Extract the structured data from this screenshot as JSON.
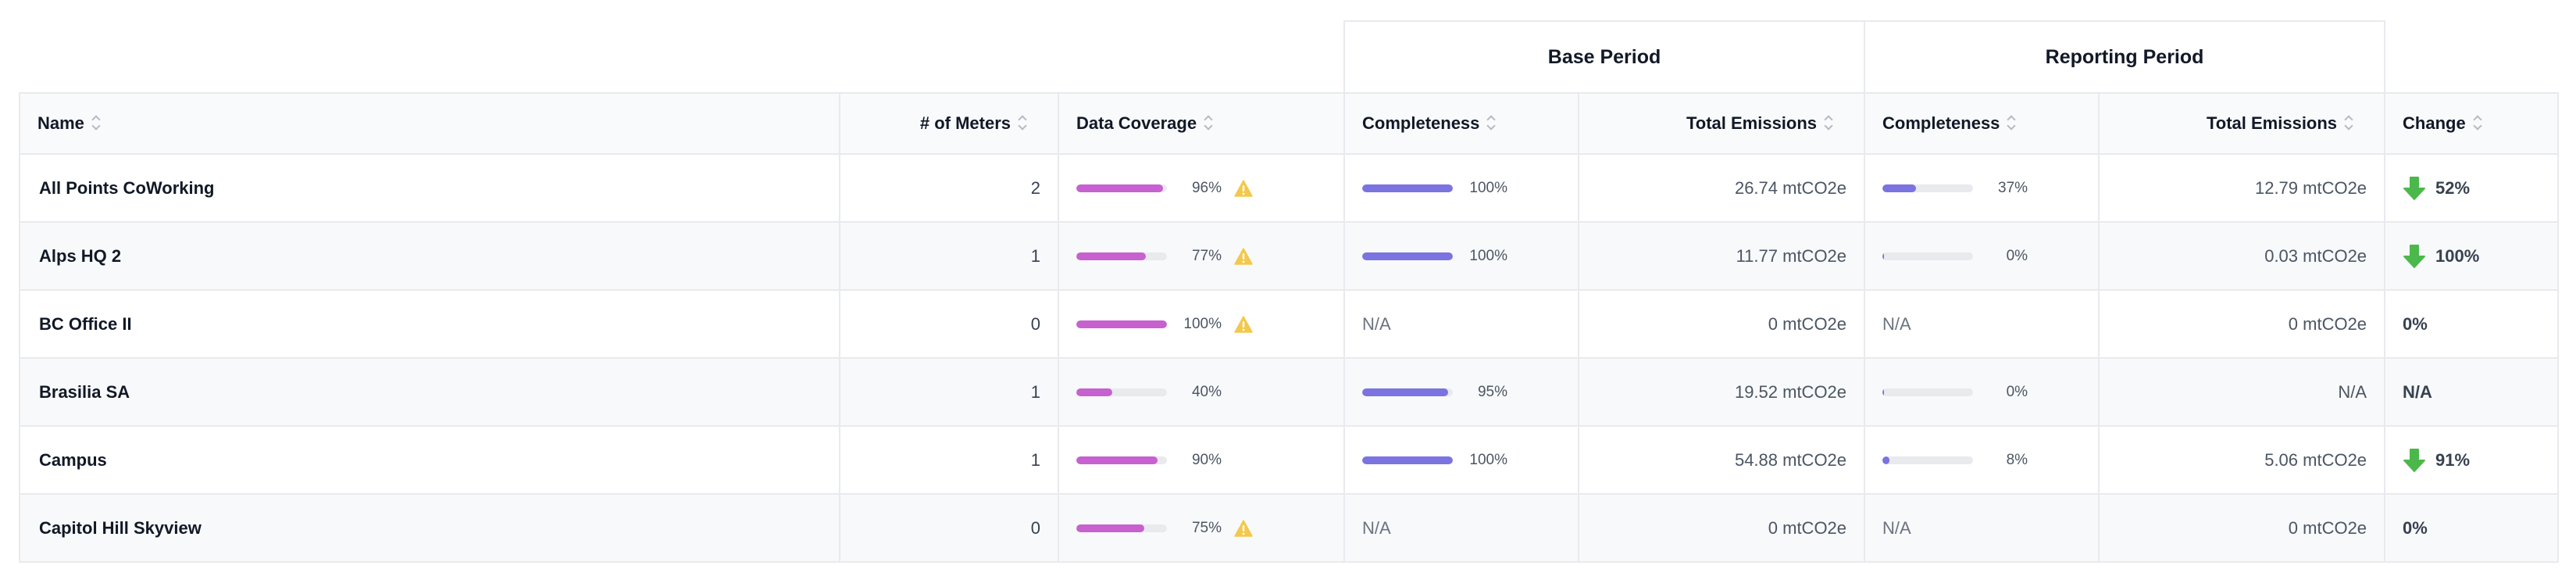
{
  "groups": {
    "base": "Base Period",
    "reporting": "Reporting Period"
  },
  "columns": {
    "name": "Name",
    "meters": "# of Meters",
    "coverage": "Data Coverage",
    "base_completeness": "Completeness",
    "base_total": "Total Emissions",
    "rep_completeness": "Completeness",
    "rep_total": "Total Emissions",
    "change": "Change"
  },
  "colors": {
    "coverage_bar": "#c661cf",
    "completeness_bar": "#7b73e0",
    "warning": "#f2c94c",
    "down_arrow": "#4cb84c"
  },
  "rows": [
    {
      "name": "All Points CoWorking",
      "meters": "2",
      "coverage": 96,
      "coverage_label": "96%",
      "coverage_warning": true,
      "base_completeness": 100,
      "base_completeness_label": "100%",
      "base_total": "26.74 mtCO2e",
      "rep_completeness": 37,
      "rep_completeness_label": "37%",
      "rep_total": "12.79 mtCO2e",
      "change": "52%",
      "change_down": true
    },
    {
      "name": "Alps HQ 2",
      "meters": "1",
      "coverage": 77,
      "coverage_label": "77%",
      "coverage_warning": true,
      "base_completeness": 100,
      "base_completeness_label": "100%",
      "base_total": "11.77 mtCO2e",
      "rep_completeness": 0,
      "rep_completeness_label": "0%",
      "rep_total": "0.03 mtCO2e",
      "change": "100%",
      "change_down": true
    },
    {
      "name": "BC Office II",
      "meters": "0",
      "coverage": 100,
      "coverage_label": "100%",
      "coverage_warning": true,
      "base_completeness": null,
      "base_completeness_na": "N/A",
      "base_total": "0 mtCO2e",
      "rep_completeness": null,
      "rep_completeness_na": "N/A",
      "rep_total": "0 mtCO2e",
      "change": "0%",
      "change_down": false
    },
    {
      "name": "Brasilia SA",
      "meters": "1",
      "coverage": 40,
      "coverage_label": "40%",
      "coverage_warning": false,
      "base_completeness": 95,
      "base_completeness_label": "95%",
      "base_total": "19.52 mtCO2e",
      "rep_completeness": 0,
      "rep_completeness_label": "0%",
      "rep_total": "N/A",
      "change": "N/A",
      "change_down": false
    },
    {
      "name": "Campus",
      "meters": "1",
      "coverage": 90,
      "coverage_label": "90%",
      "coverage_warning": false,
      "base_completeness": 100,
      "base_completeness_label": "100%",
      "base_total": "54.88 mtCO2e",
      "rep_completeness": 8,
      "rep_completeness_label": "8%",
      "rep_total": "5.06 mtCO2e",
      "change": "91%",
      "change_down": true
    },
    {
      "name": "Capitol Hill Skyview",
      "meters": "0",
      "coverage": 75,
      "coverage_label": "75%",
      "coverage_warning": true,
      "base_completeness": null,
      "base_completeness_na": "N/A",
      "base_total": "0 mtCO2e",
      "rep_completeness": null,
      "rep_completeness_na": "N/A",
      "rep_total": "0 mtCO2e",
      "change": "0%",
      "change_down": false
    }
  ]
}
